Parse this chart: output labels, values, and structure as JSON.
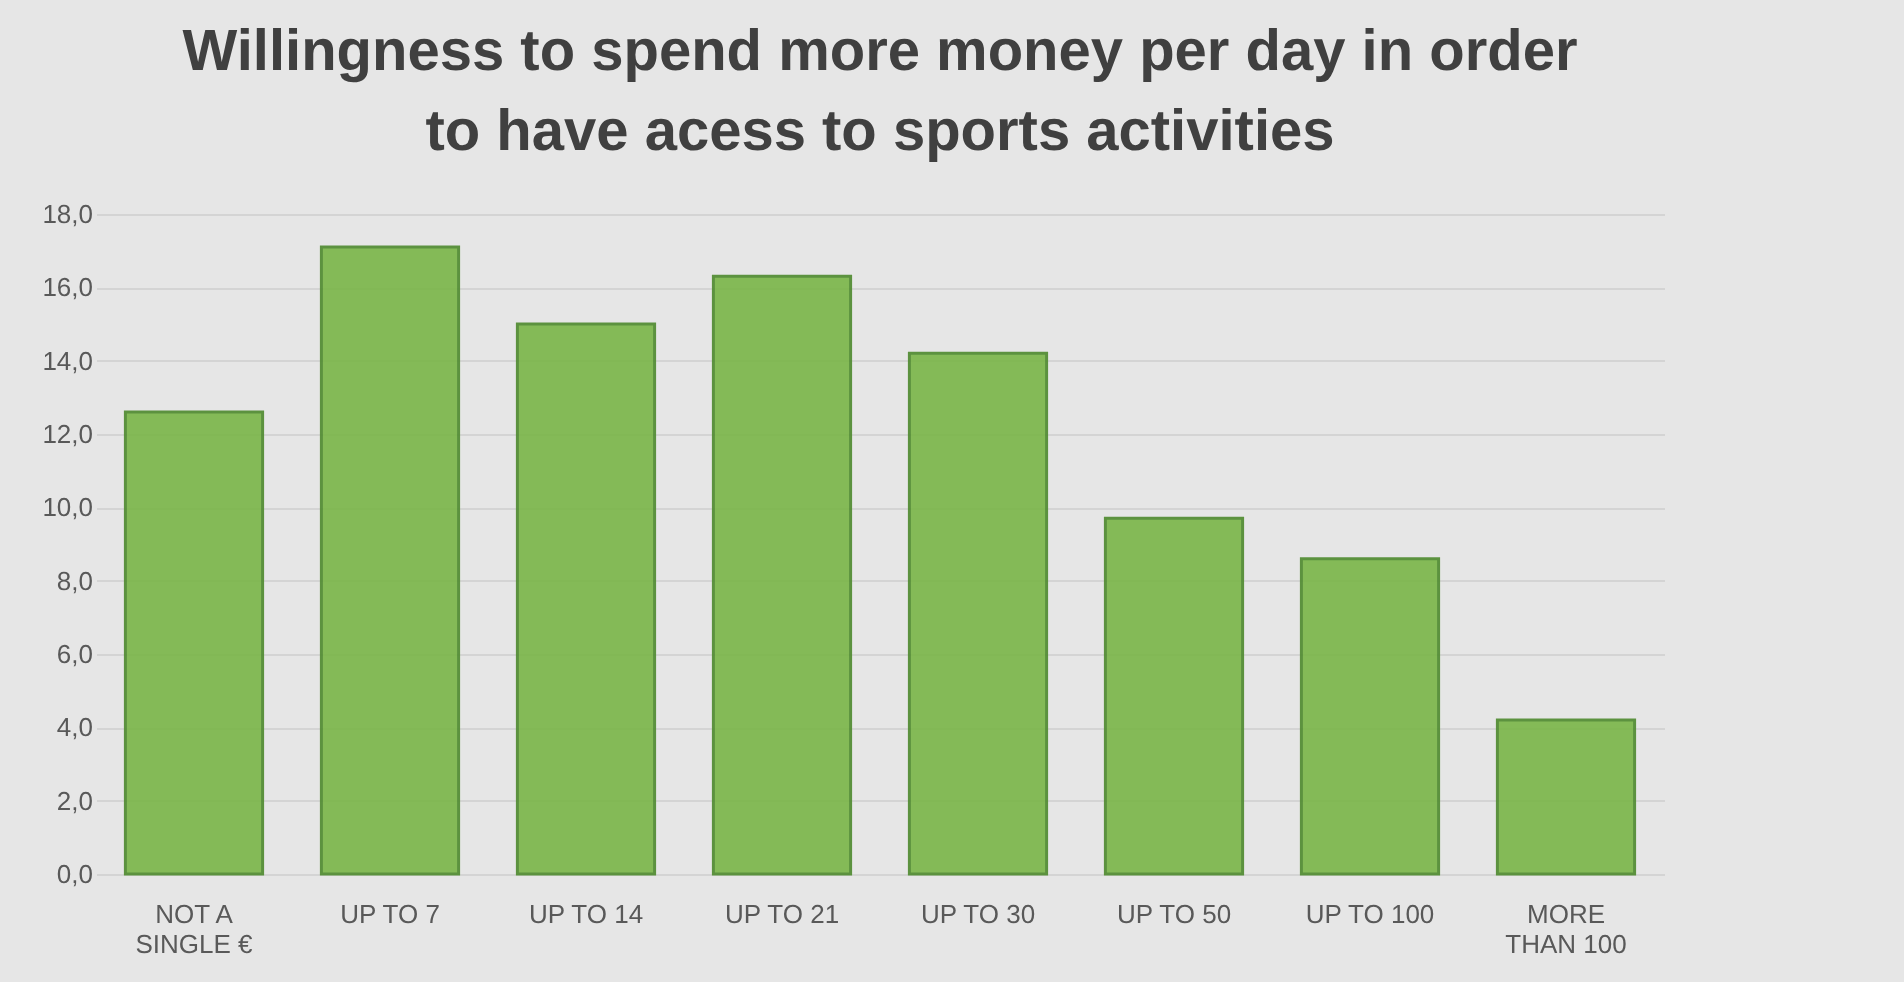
{
  "chart_data": {
    "type": "bar",
    "title": "Willingness to spend more money per day in order to have acess to sports activities",
    "categories": [
      "NOT A SINGLE €",
      "UP TO 7",
      "UP TO 14",
      "UP TO 21",
      "UP TO 30",
      "UP TO 50",
      "UP TO 100",
      "MORE THAN 100"
    ],
    "values": [
      12.6,
      17.1,
      15.0,
      16.3,
      14.2,
      9.7,
      8.6,
      4.2
    ],
    "color": "#7ab648",
    "ylim": [
      0,
      18
    ],
    "yticks": [
      {
        "value": 0,
        "label": "0,0"
      },
      {
        "value": 2,
        "label": "2,0"
      },
      {
        "value": 4,
        "label": "4,0"
      },
      {
        "value": 6,
        "label": "6,0"
      },
      {
        "value": 8,
        "label": "8,0"
      },
      {
        "value": 10,
        "label": "10,0"
      },
      {
        "value": 12,
        "label": "12,0"
      },
      {
        "value": 14,
        "label": "14,0"
      },
      {
        "value": 16,
        "label": "16,0"
      },
      {
        "value": 18,
        "label": "18,0"
      }
    ],
    "grid": "y"
  }
}
